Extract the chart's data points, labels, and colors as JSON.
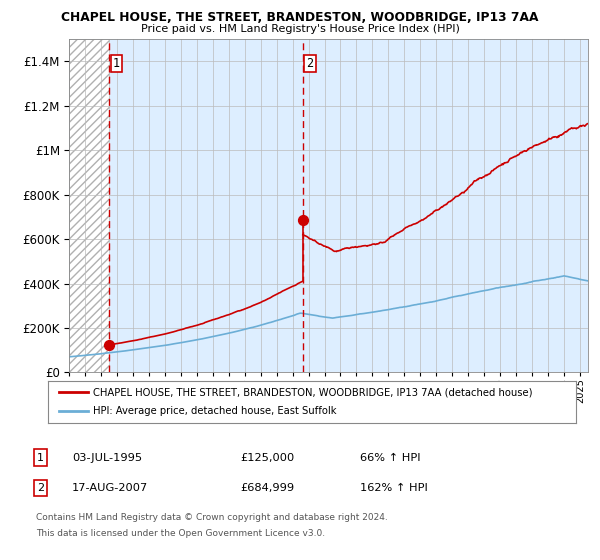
{
  "title1": "CHAPEL HOUSE, THE STREET, BRANDESTON, WOODBRIDGE, IP13 7AA",
  "title2": "Price paid vs. HM Land Registry's House Price Index (HPI)",
  "legend_line1": "CHAPEL HOUSE, THE STREET, BRANDESTON, WOODBRIDGE, IP13 7AA (detached house)",
  "legend_line2": "HPI: Average price, detached house, East Suffolk",
  "annotation1_label": "1",
  "annotation1_date": "03-JUL-1995",
  "annotation1_price": "£125,000",
  "annotation1_hpi": "66% ↑ HPI",
  "annotation2_label": "2",
  "annotation2_date": "17-AUG-2007",
  "annotation2_price": "£684,999",
  "annotation2_hpi": "162% ↑ HPI",
  "footnote1": "Contains HM Land Registry data © Crown copyright and database right 2024.",
  "footnote2": "This data is licensed under the Open Government Licence v3.0.",
  "sale1_year": 1995.5,
  "sale1_price": 125000,
  "sale2_year": 2007.63,
  "sale2_price": 684999,
  "hpi_color": "#6baed6",
  "house_color": "#cc0000",
  "vline_color": "#cc0000",
  "grid_color": "#bbbbbb",
  "bg_color": "#ddeeff",
  "ylim_max": 1500000,
  "ylim_min": 0,
  "xmin": 1993,
  "xmax": 2025.5,
  "ytick_interval": 200000
}
